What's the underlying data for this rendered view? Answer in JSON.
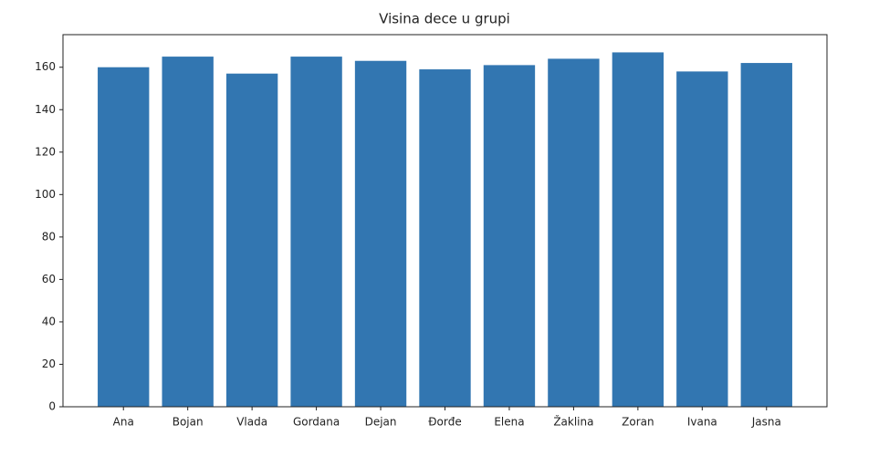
{
  "chart_data": {
    "type": "bar",
    "title": "Visina dece u grupi",
    "categories": [
      "Ana",
      "Bojan",
      "Vlada",
      "Gordana",
      "Dejan",
      "Đorđe",
      "Elena",
      "Žaklina",
      "Zoran",
      "Ivana",
      "Jasna"
    ],
    "values": [
      160,
      165,
      157,
      165,
      163,
      159,
      161,
      164,
      167,
      158,
      162
    ],
    "color": "#3276b1",
    "ylim": [
      0,
      175.35
    ],
    "yticks": [
      0,
      20,
      40,
      60,
      80,
      100,
      120,
      140,
      160
    ],
    "grid": false
  }
}
